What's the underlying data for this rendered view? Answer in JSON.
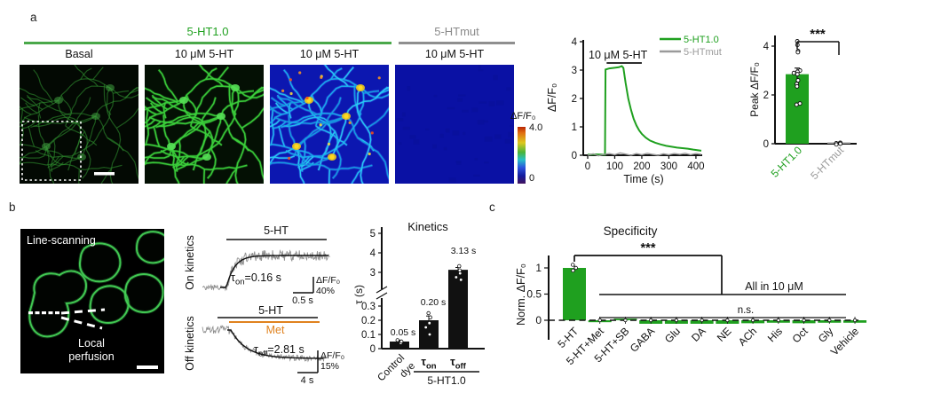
{
  "panel_a": {
    "label": "a",
    "sensor_group": "5-HT1.0",
    "mut_group": "5-HTmut",
    "image_titles": [
      "Basal",
      "10 μM 5-HT",
      "10 μM 5-HT",
      "10 μM 5-HT"
    ],
    "colorbar": {
      "label": "ΔF/F₀",
      "max": "4.0",
      "min": "0"
    }
  },
  "panel_b": {
    "label": "b",
    "image_title": "Line-scanning",
    "caption_line1": "Local",
    "caption_line2": "perfusion",
    "on": {
      "axis_label": "On kinetics",
      "drug": "5-HT",
      "tau_sym": "τ",
      "tau_sub": "on",
      "tau_eq": "=0.16 s",
      "scale_df": "ΔF/F₀",
      "scale_pct": "40%",
      "scale_t": "0.5 s"
    },
    "off": {
      "axis_label": "Off kinetics",
      "drug": "5-HT",
      "drug2": "Met",
      "tau_sym": "τ",
      "tau_sub": "off",
      "tau_eq": "=2.81 s",
      "scale_df": "ΔF/F₀",
      "scale_pct": "15%",
      "scale_t": "4 s"
    }
  },
  "panel_c": {
    "label": "c"
  },
  "colors": {
    "green": "#1fa01f",
    "gray": "#9a9a9a",
    "orange": "#e0821e",
    "black": "#111111"
  },
  "chart_data": [
    {
      "id": "response_trace",
      "type": "line",
      "xlabel": "Time (s)",
      "ylabel": "ΔF/F₀",
      "xlim": [
        0,
        420
      ],
      "ylim": [
        0,
        4
      ],
      "xticks": [
        0,
        100,
        200,
        300,
        400
      ],
      "yticks": [
        0,
        1,
        2,
        3,
        4
      ],
      "annotation": {
        "text": "10 μM 5-HT",
        "bar_time": [
          70,
          200
        ]
      },
      "series": [
        {
          "name": "5-HT1.0",
          "color": "#1fa01f",
          "points": [
            [
              0,
              0.02
            ],
            [
              30,
              0.03
            ],
            [
              64,
              0.02
            ],
            [
              66,
              3.02
            ],
            [
              80,
              3.06
            ],
            [
              100,
              3.08
            ],
            [
              115,
              3.1
            ],
            [
              126,
              3.14
            ],
            [
              132,
              3.08
            ],
            [
              140,
              2.55
            ],
            [
              150,
              2.0
            ],
            [
              160,
              1.6
            ],
            [
              170,
              1.28
            ],
            [
              180,
              1.05
            ],
            [
              190,
              0.88
            ],
            [
              200,
              0.75
            ],
            [
              215,
              0.62
            ],
            [
              230,
              0.52
            ],
            [
              250,
              0.44
            ],
            [
              270,
              0.38
            ],
            [
              290,
              0.33
            ],
            [
              310,
              0.3
            ],
            [
              330,
              0.27
            ],
            [
              350,
              0.25
            ],
            [
              370,
              0.23
            ],
            [
              390,
              0.2
            ],
            [
              405,
              0.18
            ],
            [
              420,
              0.16
            ]
          ]
        },
        {
          "name": "5-HTmut",
          "color": "#9a9a9a",
          "points": [
            [
              0,
              0.0
            ],
            [
              20,
              0.05
            ],
            [
              40,
              -0.02
            ],
            [
              60,
              0.03
            ],
            [
              80,
              0.06
            ],
            [
              100,
              0.02
            ],
            [
              120,
              0.08
            ],
            [
              140,
              0.04
            ],
            [
              160,
              0.0
            ],
            [
              180,
              0.06
            ],
            [
              200,
              0.02
            ],
            [
              220,
              0.07
            ],
            [
              240,
              0.03
            ],
            [
              260,
              0.0
            ],
            [
              280,
              0.05
            ],
            [
              300,
              0.02
            ],
            [
              320,
              0.06
            ],
            [
              340,
              0.03
            ],
            [
              360,
              0.07
            ],
            [
              380,
              0.02
            ],
            [
              400,
              0.06
            ],
            [
              420,
              0.03
            ]
          ]
        }
      ]
    },
    {
      "id": "peak_bar",
      "type": "bar",
      "ylabel": "Peak ΔF/F₀",
      "yticks": [
        0,
        2,
        4
      ],
      "categories": [
        "5-HT1.0",
        "5-HTmut"
      ],
      "bar_colors": [
        "#1fa01f",
        "#9a9a9a"
      ],
      "label_colors": [
        "#1fa01f",
        "#9a9a9a"
      ],
      "values": [
        2.85,
        0.02
      ],
      "errors": [
        0.25,
        0.04
      ],
      "points": [
        [
          4.2,
          4.05,
          3.8,
          3.75,
          3.0,
          2.95,
          2.9,
          2.85,
          2.6,
          2.45,
          2.35,
          1.65,
          1.6
        ],
        [
          0.04,
          0.0,
          0.02,
          -0.03
        ]
      ],
      "significance": "***"
    },
    {
      "id": "kinetics_bar",
      "type": "bar",
      "title": "Kinetics",
      "ylabel": "τ (s)",
      "axis_break": true,
      "lower_ticks": [
        0,
        0.1,
        0.2,
        0.3
      ],
      "upper_ticks": [
        3,
        4,
        5
      ],
      "categories": [
        "Control dye",
        "τon",
        "τoff"
      ],
      "categories_rich": [
        {
          "lines": [
            "Control",
            "dye"
          ]
        },
        {
          "base": "τ",
          "sub": "on"
        },
        {
          "base": "τ",
          "sub": "off"
        }
      ],
      "values": [
        0.05,
        0.2,
        3.13
      ],
      "value_labels": [
        "0.05 s",
        "0.20 s",
        "3.13 s"
      ],
      "points": [
        [
          0.04,
          0.05,
          0.06
        ],
        [
          0.1,
          0.15,
          0.18,
          0.22,
          0.25
        ],
        [
          2.62,
          2.75,
          2.95,
          3.1,
          3.32
        ]
      ],
      "errors": [
        0.01,
        0.03,
        0.12
      ],
      "group_label": "5-HT1.0",
      "bar_color": "#111111"
    },
    {
      "id": "specificity_bar",
      "type": "bar",
      "title": "Specificity",
      "ylabel": "Norm. ΔF/F₀",
      "yticks": [
        0,
        0.5,
        1
      ],
      "categories": [
        "5-HT",
        "5-HT+Met",
        "5-HT+SB",
        "GABA",
        "Glu",
        "DA",
        "NE",
        "ACh",
        "His",
        "Oct",
        "Gly",
        "Vehicle"
      ],
      "values": [
        1.0,
        -0.02,
        0.03,
        -0.05,
        -0.05,
        -0.05,
        -0.05,
        -0.04,
        -0.03,
        -0.04,
        -0.03,
        -0.03
      ],
      "bar_color": "#1fa01f",
      "significance": "***",
      "group_line_label": "All in 10 μM",
      "ns_label": "n.s."
    }
  ]
}
